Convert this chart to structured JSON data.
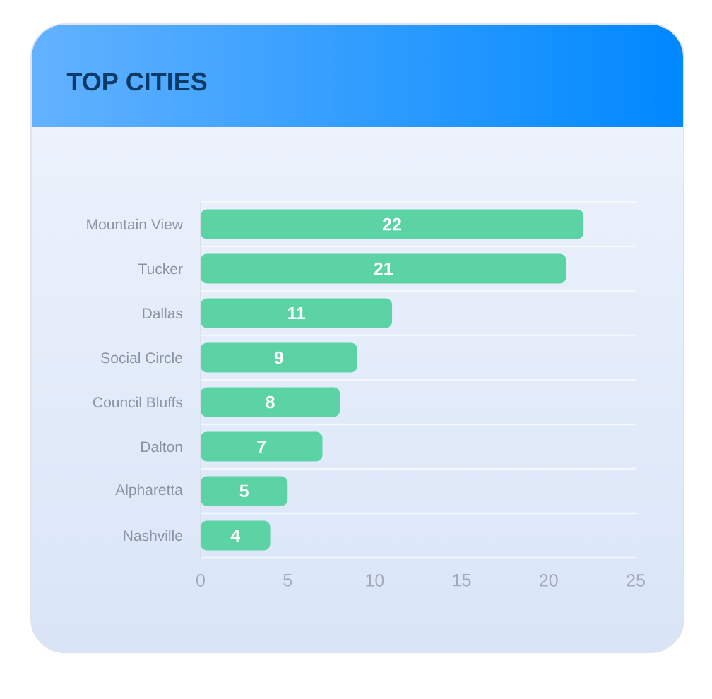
{
  "chart_data": {
    "type": "bar",
    "orientation": "horizontal",
    "title": "TOP CITIES",
    "categories": [
      "Mountain View",
      "Tucker",
      "Dallas",
      "Social Circle",
      "Council Bluffs",
      "Dalton",
      "Alpharetta",
      "Nashville"
    ],
    "values": [
      22,
      21,
      11,
      9,
      8,
      7,
      5,
      4
    ],
    "color": "#5cd3a5",
    "xlim": [
      0,
      25
    ],
    "xticks": [
      0,
      5,
      10,
      15,
      20,
      25
    ],
    "grid": "y",
    "data_labels": true
  }
}
